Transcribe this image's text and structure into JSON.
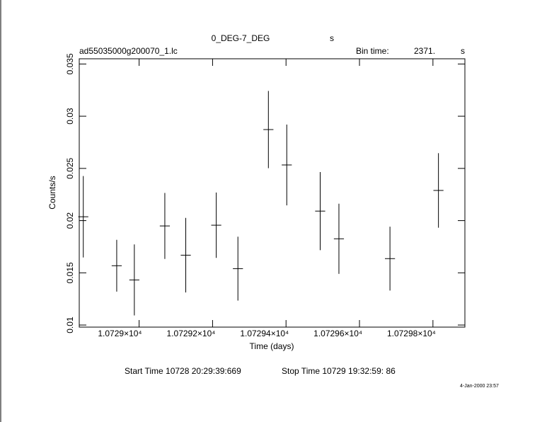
{
  "chart_data": {
    "type": "errorbar",
    "title": "0_DEG-7_DEG",
    "title_unit": "s",
    "file_name": "ad55035000g200070_1.lc",
    "bin_time_label": "Bin time:",
    "bin_time": "2371.",
    "bin_time_unit": "s",
    "x_label": "Time (days)",
    "y_label": "Counts/s",
    "start_time": "Start Time 10728 20:29:39:669",
    "stop_time": "Stop Time 10729 19:32:59: 86",
    "date_stamp": "4-Jan-2000 23:57",
    "color": "#000000",
    "x": [
      10728.848,
      10728.939,
      10728.987,
      10729.07,
      10729.127,
      10729.21,
      10729.269,
      10729.352,
      10729.402,
      10729.493,
      10729.544,
      10729.683,
      10729.815
    ],
    "xerr": 0.0137,
    "values": [
      0.02037,
      0.01568,
      0.01432,
      0.01949,
      0.01669,
      0.01956,
      0.0154,
      0.02872,
      0.02533,
      0.02091,
      0.01826,
      0.01636,
      0.02289
    ],
    "yerr": [
      0.0039,
      0.00248,
      0.0034,
      0.00316,
      0.00357,
      0.00313,
      0.00306,
      0.0037,
      0.00387,
      0.00374,
      0.00336,
      0.00306,
      0.00357
    ],
    "xlim": [
      10728.837,
      10729.887
    ],
    "ylim": [
      0.0098,
      0.0355
    ],
    "xticks": [
      {
        "value": 10729,
        "label": "1.0729×10⁴"
      },
      {
        "value": 10729.2,
        "label": "1.07292×10⁴"
      },
      {
        "value": 10729.4,
        "label": "1.07294×10⁴"
      },
      {
        "value": 10729.6,
        "label": "1.07296×10⁴"
      },
      {
        "value": 10729.8,
        "label": "1.07298×10⁴"
      }
    ],
    "yticks": [
      0.01,
      0.015,
      0.02,
      0.025,
      0.03,
      0.035
    ]
  }
}
